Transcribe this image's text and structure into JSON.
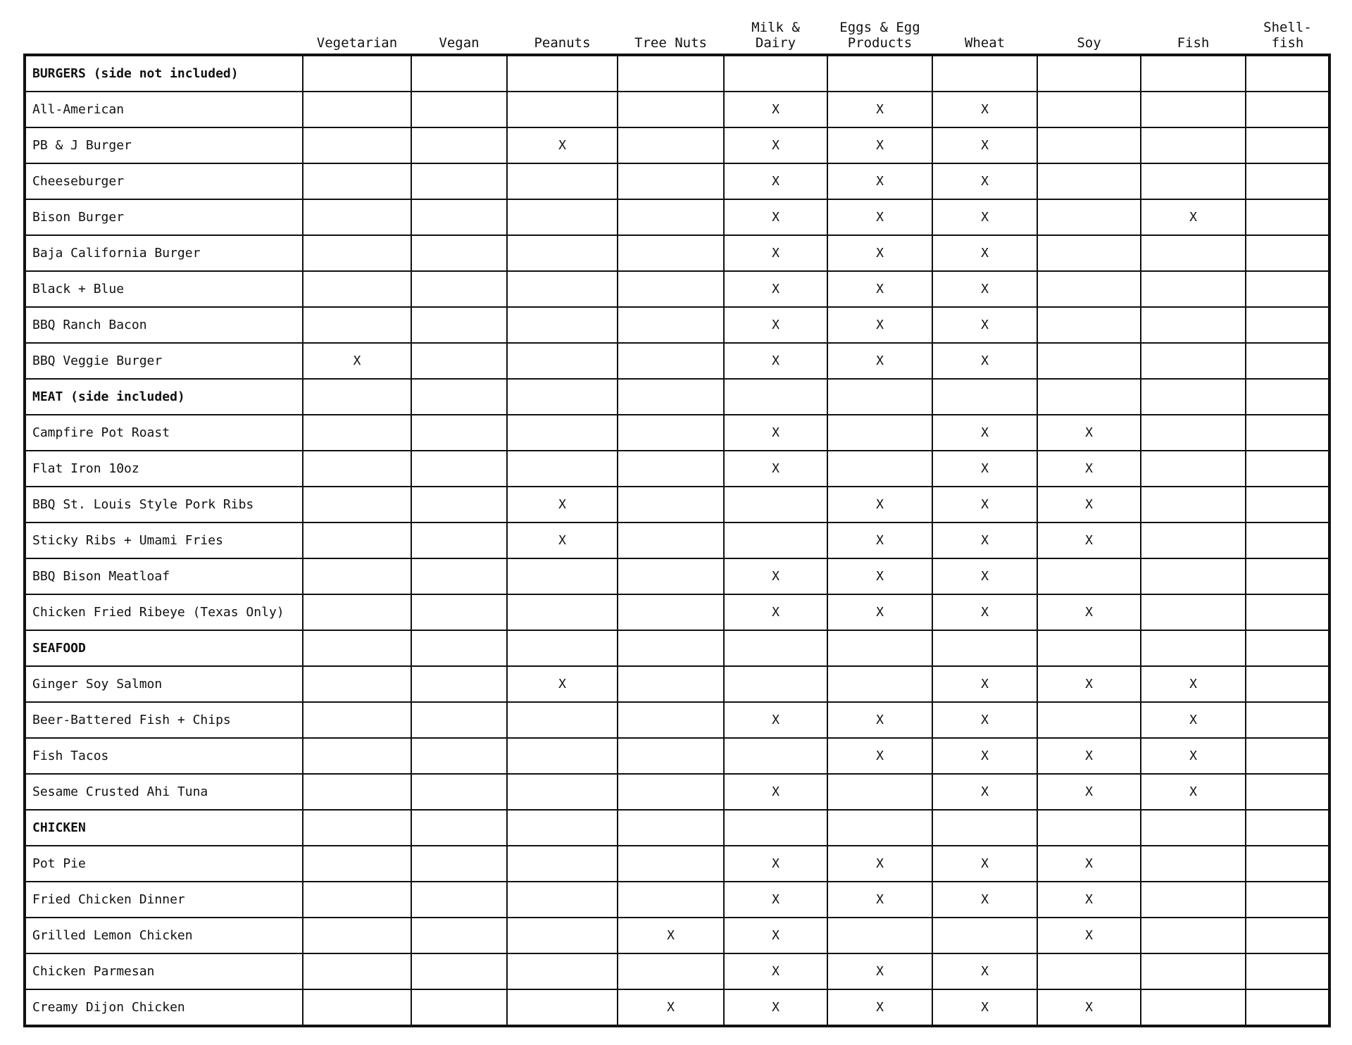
{
  "headers": [
    "Vegetarian",
    "Vegan",
    "Peanuts",
    "Tree Nuts",
    "Milk &\nDairy",
    "Eggs & Egg\nProducts",
    "Wheat",
    "Soy",
    "Fish",
    "Shell-\nfish"
  ],
  "rows": [
    {
      "name": "BURGERS (side not included)",
      "section": true
    },
    {
      "name": "All-American",
      "cells": [
        null,
        null,
        null,
        null,
        "X",
        "X",
        "X",
        null,
        null,
        null
      ]
    },
    {
      "name": "PB & J Burger",
      "cells": [
        null,
        null,
        "X",
        null,
        "X",
        "X",
        "X",
        null,
        null,
        null
      ]
    },
    {
      "name": "Cheeseburger",
      "cells": [
        null,
        null,
        null,
        null,
        "X",
        "X",
        "X",
        null,
        null,
        null
      ]
    },
    {
      "name": "Bison Burger",
      "cells": [
        null,
        null,
        null,
        null,
        "X",
        "X",
        "X",
        null,
        "X",
        null
      ]
    },
    {
      "name": "Baja California Burger",
      "cells": [
        null,
        null,
        null,
        null,
        "X",
        "X",
        "X",
        null,
        null,
        null
      ]
    },
    {
      "name": "Black + Blue",
      "cells": [
        null,
        null,
        null,
        null,
        "X",
        "X",
        "X",
        null,
        null,
        null
      ]
    },
    {
      "name": "BBQ Ranch Bacon",
      "cells": [
        null,
        null,
        null,
        null,
        "X",
        "X",
        "X",
        null,
        null,
        null
      ]
    },
    {
      "name": "BBQ Veggie Burger",
      "cells": [
        "X",
        null,
        null,
        null,
        "X",
        "X",
        "X",
        null,
        null,
        null
      ]
    },
    {
      "name": "MEAT (side included)",
      "section": true
    },
    {
      "name": "Campfire Pot Roast",
      "cells": [
        null,
        null,
        null,
        null,
        "X",
        null,
        "X",
        "X",
        null,
        null
      ]
    },
    {
      "name": "Flat Iron 10oz",
      "cells": [
        null,
        null,
        null,
        null,
        "X",
        null,
        "X",
        "X",
        null,
        null
      ]
    },
    {
      "name": "BBQ St. Louis Style Pork Ribs",
      "cells": [
        null,
        null,
        "X",
        null,
        null,
        "X",
        "X",
        "X",
        null,
        null
      ]
    },
    {
      "name": "Sticky Ribs + Umami Fries",
      "cells": [
        null,
        null,
        "X",
        null,
        null,
        "X",
        "X",
        "X",
        null,
        null
      ]
    },
    {
      "name": "BBQ Bison Meatloaf",
      "cells": [
        null,
        null,
        null,
        null,
        "X",
        "X",
        "X",
        null,
        null,
        null
      ]
    },
    {
      "name": "Chicken Fried Ribeye (Texas Only)",
      "cells": [
        null,
        null,
        null,
        null,
        "X",
        "X",
        "X",
        "X",
        null,
        null
      ]
    },
    {
      "name": "SEAFOOD",
      "section": true
    },
    {
      "name": "Ginger Soy Salmon",
      "cells": [
        null,
        null,
        "X",
        null,
        null,
        null,
        "X",
        "X",
        "X",
        null
      ]
    },
    {
      "name": "Beer-Battered Fish + Chips",
      "cells": [
        null,
        null,
        null,
        null,
        "X",
        "X",
        "X",
        null,
        "X",
        null
      ]
    },
    {
      "name": "Fish Tacos",
      "cells": [
        null,
        null,
        null,
        null,
        null,
        "X",
        "X",
        "X",
        "X",
        null
      ]
    },
    {
      "name": "Sesame Crusted Ahi Tuna",
      "cells": [
        null,
        null,
        null,
        null,
        "X",
        null,
        "X",
        "X",
        "X",
        null
      ]
    },
    {
      "name": "CHICKEN",
      "section": true
    },
    {
      "name": "Pot Pie",
      "cells": [
        null,
        null,
        null,
        null,
        "X",
        "X",
        "X",
        "X",
        null,
        null
      ]
    },
    {
      "name": "Fried Chicken Dinner",
      "cells": [
        null,
        null,
        null,
        null,
        "X",
        "X",
        "X",
        "X",
        null,
        null
      ]
    },
    {
      "name": "Grilled Lemon Chicken",
      "cells": [
        null,
        null,
        null,
        "X",
        "X",
        null,
        null,
        "X",
        null,
        null
      ]
    },
    {
      "name": "Chicken Parmesan",
      "cells": [
        null,
        null,
        null,
        null,
        "X",
        "X",
        "X",
        null,
        null,
        null
      ]
    },
    {
      "name": "Creamy Dijon Chicken",
      "cells": [
        null,
        null,
        null,
        "X",
        "X",
        "X",
        "X",
        "X",
        null,
        null
      ]
    }
  ]
}
